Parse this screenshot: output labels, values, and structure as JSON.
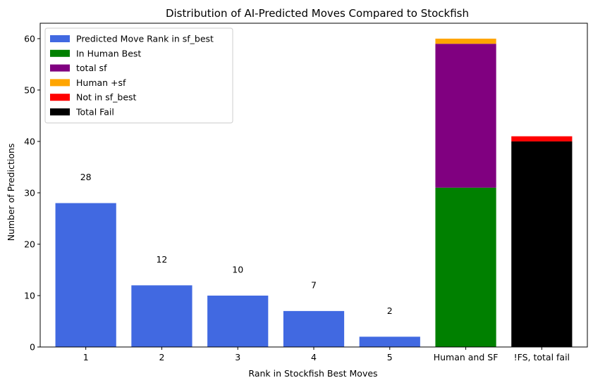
{
  "chart_data": {
    "type": "bar",
    "title": "Distribution of AI-Predicted Moves Compared to Stockfish",
    "xlabel": "Rank in Stockfish Best Moves",
    "ylabel": "Number of Predictions",
    "ylim": [
      0,
      63
    ],
    "yticks": [
      0,
      10,
      20,
      30,
      40,
      50,
      60
    ],
    "categories": [
      "1",
      "2",
      "3",
      "4",
      "5",
      "Human and SF",
      "!FS, total fail"
    ],
    "legend_position": "top-left",
    "series": [
      {
        "name": "Predicted Move Rank in sf_best",
        "color": "#4169E1",
        "stack_base": [
          0,
          0,
          0,
          0,
          0,
          null,
          null
        ],
        "values": [
          28,
          12,
          10,
          7,
          2,
          null,
          null
        ],
        "data_labels": [
          "28",
          "12",
          "10",
          "7",
          "2",
          null,
          null
        ]
      },
      {
        "name": "In Human Best",
        "color": "#008000",
        "stack_base": [
          null,
          null,
          null,
          null,
          null,
          0,
          null
        ],
        "values": [
          null,
          null,
          null,
          null,
          null,
          31,
          null
        ]
      },
      {
        "name": "total sf",
        "color": "#800080",
        "stack_base": [
          null,
          null,
          null,
          null,
          null,
          31,
          null
        ],
        "values": [
          null,
          null,
          null,
          null,
          null,
          28,
          null
        ]
      },
      {
        "name": "Human +sf",
        "color": "#FFA500",
        "stack_base": [
          null,
          null,
          null,
          null,
          null,
          59,
          null
        ],
        "values": [
          null,
          null,
          null,
          null,
          null,
          1,
          null
        ]
      },
      {
        "name": "Not in sf_best",
        "color": "#FF0000",
        "stack_base": [
          null,
          null,
          null,
          null,
          null,
          null,
          40
        ],
        "values": [
          null,
          null,
          null,
          null,
          null,
          null,
          1
        ]
      },
      {
        "name": "Total Fail",
        "color": "#000000",
        "stack_base": [
          null,
          null,
          null,
          null,
          null,
          null,
          0
        ],
        "values": [
          null,
          null,
          null,
          null,
          null,
          null,
          40
        ]
      }
    ]
  }
}
